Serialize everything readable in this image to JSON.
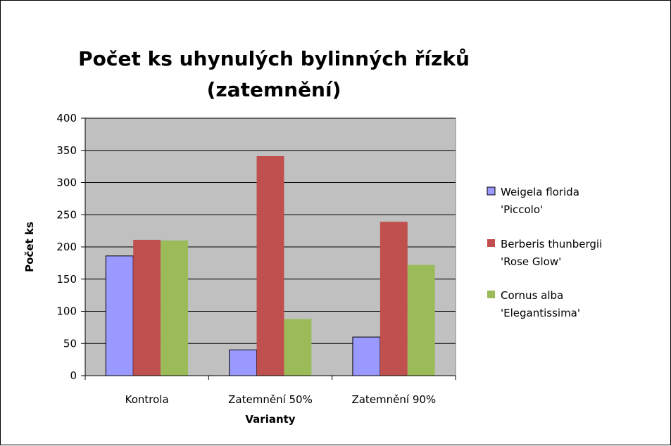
{
  "chart_data": {
    "type": "bar",
    "title_lines": [
      "Počet ks uhynulých bylinných řízků",
      "(zatemnění)"
    ],
    "xlabel": "Varianty",
    "ylabel": "Počet ks",
    "categories": [
      "Kontrola",
      "Zatemnění 50%",
      "Zatemnění 90%"
    ],
    "ylim": [
      0,
      400
    ],
    "yticks": [
      0,
      50,
      100,
      150,
      200,
      250,
      300,
      350,
      400
    ],
    "grid": true,
    "legend_position": "right",
    "plot_background": "#c0c0c0",
    "series": [
      {
        "name_lines": [
          "Weigela florida",
          "'Piccolo'"
        ],
        "color": "#9999ff",
        "values": [
          186,
          40,
          60
        ]
      },
      {
        "name_lines": [
          "Berberis thunbergii",
          "'Rose Glow'"
        ],
        "color": "#c0504d",
        "values": [
          211,
          341,
          239
        ]
      },
      {
        "name_lines": [
          "Cornus alba",
          "'Elegantissima'"
        ],
        "color": "#9bbb59",
        "values": [
          210,
          88,
          172
        ]
      }
    ]
  }
}
